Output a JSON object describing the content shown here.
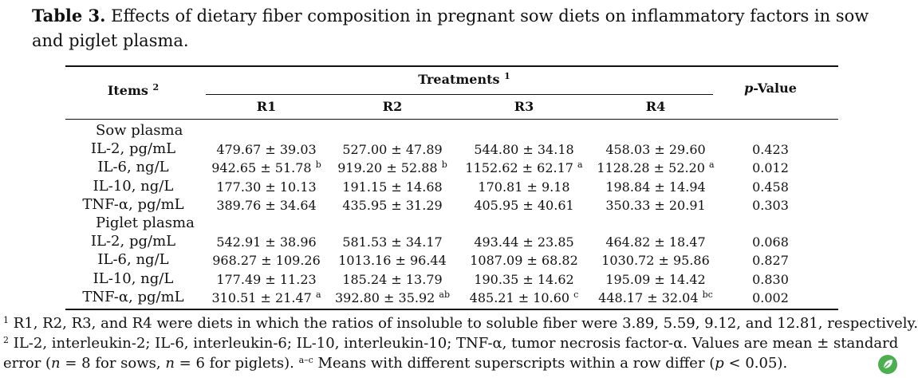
{
  "caption": {
    "label": "Table 3.",
    "text": " Effects of dietary fiber composition in pregnant sow diets on inflammatory factors in sow and piglet plasma."
  },
  "header": {
    "items": "Items",
    "items_sup": "2",
    "treatments": "Treatments",
    "treatments_sup": "1",
    "p_value_italic": "p",
    "p_value_rest": "-Value",
    "r1": "R1",
    "r2": "R2",
    "r3": "R3",
    "r4": "R4"
  },
  "groups": [
    {
      "title": "Sow plasma",
      "rows": [
        {
          "item": "IL-2, pg/mL",
          "r1": "479.67 ± 39.03",
          "r1_sup": "",
          "r2": "527.00 ± 47.89",
          "r2_sup": "",
          "r3": "544.80 ± 34.18",
          "r3_sup": "",
          "r4": "458.03 ± 29.60",
          "r4_sup": "",
          "p": "0.423"
        },
        {
          "item": "IL-6, ng/L",
          "r1": "942.65 ± 51.78",
          "r1_sup": "b",
          "r2": "919.20 ± 52.88",
          "r2_sup": "b",
          "r3": "1152.62 ± 62.17",
          "r3_sup": "a",
          "r4": "1128.28 ± 52.20",
          "r4_sup": "a",
          "p": "0.012"
        },
        {
          "item": "IL-10, ng/L",
          "r1": "177.30 ± 10.13",
          "r1_sup": "",
          "r2": "191.15 ± 14.68",
          "r2_sup": "",
          "r3": "170.81 ± 9.18",
          "r3_sup": "",
          "r4": "198.84 ± 14.94",
          "r4_sup": "",
          "p": "0.458"
        },
        {
          "item": "TNF-α, pg/mL",
          "r1": "389.76 ± 34.64",
          "r1_sup": "",
          "r2": "435.95 ± 31.29",
          "r2_sup": "",
          "r3": "405.95 ± 40.61",
          "r3_sup": "",
          "r4": "350.33 ± 20.91",
          "r4_sup": "",
          "p": "0.303"
        }
      ]
    },
    {
      "title": "Piglet plasma",
      "rows": [
        {
          "item": "IL-2, pg/mL",
          "r1": "542.91 ± 38.96",
          "r1_sup": "",
          "r2": "581.53 ± 34.17",
          "r2_sup": "",
          "r3": "493.44 ± 23.85",
          "r3_sup": "",
          "r4": "464.82 ± 18.47",
          "r4_sup": "",
          "p": "0.068"
        },
        {
          "item": "IL-6, ng/L",
          "r1": "968.27 ± 109.26",
          "r1_sup": "",
          "r2": "1013.16 ± 96.44",
          "r2_sup": "",
          "r3": "1087.09 ± 68.82",
          "r3_sup": "",
          "r4": "1030.72 ± 95.86",
          "r4_sup": "",
          "p": "0.827"
        },
        {
          "item": "IL-10, ng/L",
          "r1": "177.49 ± 11.23",
          "r1_sup": "",
          "r2": "185.24 ± 13.79",
          "r2_sup": "",
          "r3": "190.35 ± 14.62",
          "r3_sup": "",
          "r4": "195.09 ± 14.42",
          "r4_sup": "",
          "p": "0.830"
        },
        {
          "item": "TNF-α, pg/mL",
          "r1": "310.51 ± 21.47",
          "r1_sup": "a",
          "r2": "392.80 ± 35.92",
          "r2_sup": "ab",
          "r3": "485.21 ± 10.60",
          "r3_sup": "c",
          "r4": "448.17 ± 32.04",
          "r4_sup": "bc",
          "p": "0.002"
        }
      ]
    }
  ],
  "footnotes": {
    "f1_sup": "1",
    "f1": " R1, R2, R3, and R4 were diets in which the ratios of insoluble to soluble fiber were 3.89, 5.59, 9.12, and 12.81, respectively.",
    "f2_sup": "2",
    "f2": " IL-2, interleukin-2; IL-6, interleukin-6; IL-10, interleukin-10; TNF-α, tumor necrosis factor-α. Values are mean ± standard",
    "f3_a": "error (",
    "f3_n1": "n",
    "f3_b": " = 8 for sows, ",
    "f3_n2": "n",
    "f3_c": " = 6 for piglets). ",
    "f3_sup": "a–c",
    "f3_d": " Means with different superscripts within a row differ (",
    "f3_p": "p",
    "f3_e": " < 0.05)."
  },
  "icons": {
    "logo": "journal-leaf-logo-icon",
    "logo_color": "#4caf50"
  }
}
